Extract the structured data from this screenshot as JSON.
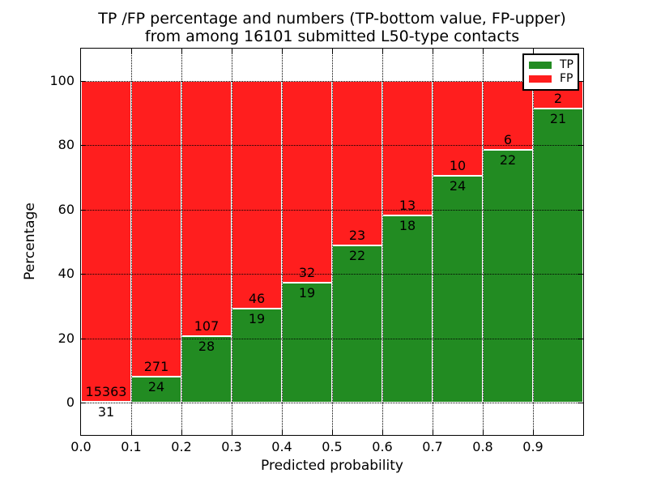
{
  "chart_data": {
    "type": "bar",
    "stacked": true,
    "title_line1": "TP /FP percentage and numbers (TP-bottom value, FP-upper)",
    "title_line2": "from among 16101 submitted L50-type contacts",
    "xlabel": "Predicted probability",
    "ylabel": "Percentage",
    "total_submitted": 16101,
    "xlim": [
      0.0,
      1.0
    ],
    "ylim": [
      -10,
      110
    ],
    "x_ticks": [
      0.0,
      0.1,
      0.2,
      0.3,
      0.4,
      0.5,
      0.6,
      0.7,
      0.8,
      0.9
    ],
    "x_tick_labels": [
      "0.0",
      "0.1",
      "0.2",
      "0.3",
      "0.4",
      "0.5",
      "0.6",
      "0.7",
      "0.8",
      "0.9"
    ],
    "y_ticks": [
      0,
      20,
      40,
      60,
      80,
      100
    ],
    "y_tick_labels": [
      "0",
      "20",
      "40",
      "60",
      "80",
      "100"
    ],
    "grid_style": "dotted",
    "bar_edge_color": "#ffffff",
    "legend": {
      "position": "upper right",
      "entries": [
        {
          "label": "TP",
          "color": "#228B22"
        },
        {
          "label": "FP",
          "color": "#FF1E1E"
        }
      ]
    },
    "bins": [
      {
        "range": "0.0-0.1",
        "tp": 31,
        "fp": 15363,
        "tp_pct": 0.2
      },
      {
        "range": "0.1-0.2",
        "tp": 24,
        "fp": 271,
        "tp_pct": 8.14
      },
      {
        "range": "0.2-0.3",
        "tp": 28,
        "fp": 107,
        "tp_pct": 20.74
      },
      {
        "range": "0.3-0.4",
        "tp": 19,
        "fp": 46,
        "tp_pct": 29.23
      },
      {
        "range": "0.4-0.5",
        "tp": 19,
        "fp": 32,
        "tp_pct": 37.25
      },
      {
        "range": "0.5-0.6",
        "tp": 22,
        "fp": 23,
        "tp_pct": 48.89
      },
      {
        "range": "0.6-0.7",
        "tp": 18,
        "fp": 13,
        "tp_pct": 58.06
      },
      {
        "range": "0.7-0.8",
        "tp": 24,
        "fp": 10,
        "tp_pct": 70.59
      },
      {
        "range": "0.8-0.9",
        "tp": 22,
        "fp": 6,
        "tp_pct": 78.57
      },
      {
        "range": "0.9-1.0",
        "tp": 21,
        "fp": 2,
        "tp_pct": 91.3
      }
    ],
    "series": [
      {
        "name": "TP",
        "values": [
          31,
          24,
          28,
          19,
          19,
          22,
          18,
          24,
          22,
          21
        ]
      },
      {
        "name": "FP",
        "values": [
          15363,
          271,
          107,
          46,
          32,
          23,
          13,
          10,
          6,
          2
        ]
      }
    ]
  }
}
